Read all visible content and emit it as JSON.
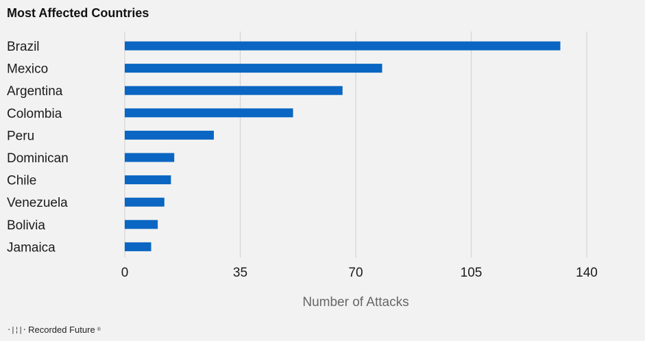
{
  "chart_data": {
    "type": "bar",
    "orientation": "horizontal",
    "title": "Most Affected Countries",
    "categories": [
      "Brazil",
      "Mexico",
      "Argentina",
      "Colombia",
      "Peru",
      "Dominican",
      "Chile",
      "Venezuela",
      "Bolivia",
      "Jamaica"
    ],
    "values": [
      132,
      78,
      66,
      51,
      27,
      15,
      14,
      12,
      10,
      8
    ],
    "xlabel": "Number of Attacks",
    "ylabel": "",
    "xlim": [
      0,
      140
    ],
    "xticks": [
      0,
      35,
      70,
      105,
      140
    ],
    "grid": true,
    "bar_color": "#0a66c2",
    "grid_color": "#d4d4d4"
  },
  "brand": {
    "logo_mark": "·|¦|·",
    "name": "Recorded Future",
    "reg": "®"
  }
}
